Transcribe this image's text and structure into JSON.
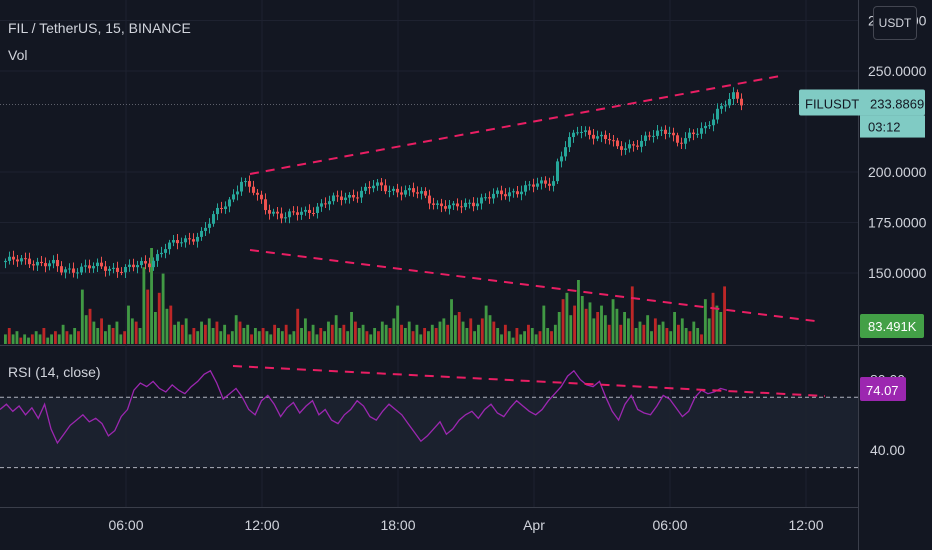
{
  "symbol_title": "FIL / TetherUS, 15, BINANCE",
  "vol_label": "Vol",
  "rsi_label": "RSI (14, close)",
  "currency_button": "USDT",
  "price_axis": {
    "ticks": [
      "275.0000",
      "250.0000",
      "200.0000",
      "175.0000",
      "150.0000"
    ],
    "tick_values": [
      275,
      250,
      200,
      175,
      150
    ]
  },
  "rsi_axis": {
    "ticks": [
      "80.00",
      "40.00"
    ],
    "tick_values": [
      80,
      40
    ]
  },
  "time_axis": {
    "ticks": [
      "06:00",
      "12:00",
      "18:00",
      "Apr",
      "06:00",
      "12:00"
    ]
  },
  "price_badge": {
    "symbol": "FILUSDT",
    "price": "233.8869",
    "countdown": "03:12"
  },
  "volume_badge": "83.491K",
  "rsi_badge": "74.07",
  "colors": {
    "background": "#131722",
    "up": "#26a69a",
    "down": "#ef5350",
    "vol_up": "#43a047",
    "vol_down": "#c62828",
    "trendline": "#e91e63",
    "rsi_line": "#9c27b0",
    "badge_price": "#80cbc4",
    "badge_vol": "#43a047",
    "badge_rsi": "#9c27b0"
  },
  "chart_data": {
    "type": "candlestick",
    "price_pivots": [
      [
        0,
        156
      ],
      [
        6,
        156
      ],
      [
        12,
        154
      ],
      [
        14,
        151
      ],
      [
        20,
        153
      ],
      [
        30,
        152
      ],
      [
        36,
        155
      ],
      [
        40,
        163
      ],
      [
        45,
        166
      ],
      [
        49,
        170
      ],
      [
        53,
        180
      ],
      [
        56,
        186
      ],
      [
        59,
        196
      ],
      [
        62,
        190
      ],
      [
        65,
        182
      ],
      [
        70,
        178
      ],
      [
        75,
        180
      ],
      [
        80,
        185
      ],
      [
        86,
        188
      ],
      [
        92,
        193
      ],
      [
        98,
        191
      ],
      [
        104,
        189
      ],
      [
        108,
        184
      ],
      [
        112,
        182
      ],
      [
        118,
        186
      ],
      [
        124,
        189
      ],
      [
        130,
        192
      ],
      [
        134,
        194
      ],
      [
        137,
        196
      ],
      [
        138,
        205
      ],
      [
        140,
        213
      ],
      [
        143,
        220
      ],
      [
        147,
        219
      ],
      [
        151,
        216
      ],
      [
        153,
        211
      ],
      [
        157,
        214
      ],
      [
        162,
        218
      ],
      [
        166,
        221
      ],
      [
        168,
        215
      ],
      [
        172,
        218
      ],
      [
        175,
        222
      ],
      [
        178,
        231
      ],
      [
        182,
        237
      ],
      [
        184,
        234
      ]
    ],
    "volume_values": [
      3,
      5,
      3,
      4,
      2,
      3,
      2,
      3,
      4,
      3,
      5,
      2,
      3,
      4,
      3,
      6,
      4,
      3,
      5,
      4,
      17,
      9,
      11,
      7,
      5,
      8,
      4,
      6,
      5,
      7,
      3,
      4,
      12,
      8,
      7,
      5,
      24,
      17,
      30,
      10,
      16,
      22,
      11,
      12,
      6,
      7,
      6,
      8,
      3,
      5,
      4,
      7,
      6,
      8,
      5,
      7,
      4,
      6,
      3,
      4,
      9,
      7,
      5,
      6,
      3,
      5,
      4,
      5,
      4,
      3,
      6,
      5,
      4,
      6,
      3,
      4,
      11,
      5,
      8,
      4,
      6,
      3,
      5,
      4,
      7,
      6,
      9,
      5,
      6,
      4,
      10,
      7,
      5,
      6,
      4,
      3,
      5,
      4,
      7,
      6,
      5,
      8,
      12,
      6,
      5,
      7,
      4,
      6,
      3,
      5,
      4,
      6,
      5,
      7,
      8,
      6,
      14,
      9,
      10,
      7,
      5,
      8,
      4,
      6,
      8,
      12,
      9,
      7,
      5,
      3,
      6,
      4,
      2,
      5,
      3,
      4,
      6,
      5,
      3,
      4,
      12,
      5,
      4,
      6,
      10,
      14,
      16,
      9,
      12,
      20,
      15,
      11,
      13,
      8,
      10,
      12,
      9,
      6,
      14,
      11,
      6,
      10,
      8,
      18,
      5,
      7,
      6,
      9,
      4,
      8,
      6,
      7,
      5,
      4,
      10,
      6,
      8,
      5,
      4,
      7,
      5,
      3,
      14,
      8,
      16,
      12,
      10,
      18
    ],
    "volume_last": "83.491K",
    "price_last": 233.8869,
    "rsi_values": [
      63,
      66,
      62,
      65,
      60,
      64,
      58,
      66,
      52,
      44,
      49,
      54,
      57,
      60,
      56,
      58,
      55,
      48,
      51,
      59,
      63,
      74,
      78,
      76,
      79,
      75,
      73,
      77,
      74,
      72,
      76,
      79,
      83,
      85,
      78,
      69,
      72,
      75,
      70,
      63,
      60,
      68,
      71,
      66,
      59,
      64,
      67,
      61,
      65,
      68,
      60,
      63,
      57,
      55,
      60,
      63,
      68,
      65,
      59,
      57,
      62,
      66,
      63,
      60,
      55,
      50,
      45,
      48,
      52,
      56,
      49,
      52,
      57,
      60,
      62,
      58,
      63,
      66,
      61,
      59,
      64,
      68,
      65,
      62,
      60,
      63,
      68,
      72,
      76,
      82,
      85,
      80,
      77,
      76,
      79,
      70,
      62,
      57,
      66,
      71,
      63,
      61,
      60,
      65,
      71,
      69,
      64,
      59,
      62,
      70,
      74,
      72,
      73,
      75,
      74
    ],
    "rsi_last": 74.07,
    "rsi_bands": [
      70,
      30
    ],
    "trendlines": [
      "resistance",
      "support-volume",
      "rsi-resistance"
    ]
  }
}
